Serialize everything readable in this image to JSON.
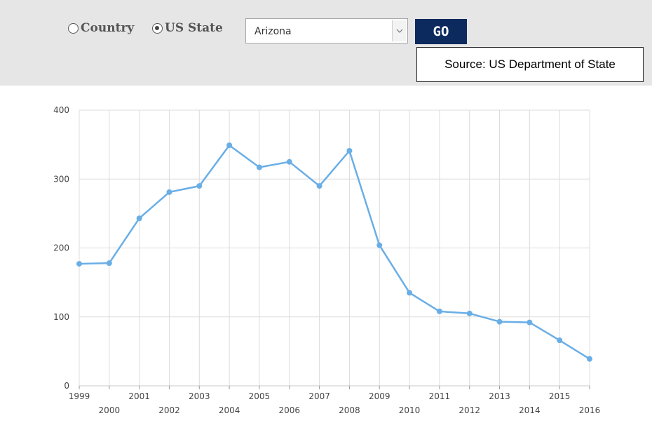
{
  "controls": {
    "radio_country_label": "Country",
    "radio_state_label": "US State",
    "selected_option": "US State",
    "state_select_value": "Arizona",
    "go_button_label": "GO",
    "go_button_color": "#0d2a5e"
  },
  "source_note": "Source: US Department of State",
  "chart_data": {
    "type": "line",
    "title": "",
    "xlabel": "",
    "ylabel": "",
    "ylim": [
      0,
      400
    ],
    "y_ticks": [
      0,
      100,
      200,
      300,
      400
    ],
    "grid": true,
    "legend": "none",
    "line_color": "#6aaee6",
    "x": [
      "1999",
      "2000",
      "2001",
      "2002",
      "2003",
      "2004",
      "2005",
      "2006",
      "2007",
      "2008",
      "2009",
      "2010",
      "2011",
      "2012",
      "2013",
      "2014",
      "2015",
      "2016"
    ],
    "values": [
      177,
      178,
      243,
      281,
      290,
      349,
      317,
      325,
      290,
      341,
      204,
      135,
      108,
      105,
      93,
      92,
      66,
      39
    ]
  }
}
